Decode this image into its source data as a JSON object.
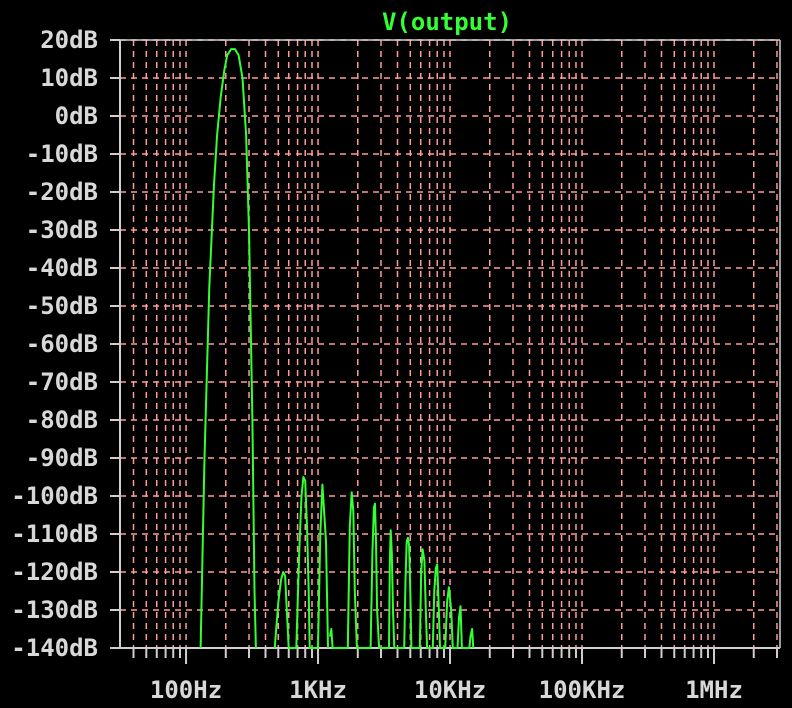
{
  "chart_data": {
    "type": "line",
    "title": "V(output)",
    "xscale": "log",
    "xlim": [
      31.6,
      3162000
    ],
    "ylim": [
      -140,
      20
    ],
    "y_ticks": [
      "20dB",
      "10dB",
      "0dB",
      "-10dB",
      "-20dB",
      "-30dB",
      "-40dB",
      "-50dB",
      "-60dB",
      "-70dB",
      "-80dB",
      "-90dB",
      "-100dB",
      "-110dB",
      "-120dB",
      "-130dB",
      "-140dB"
    ],
    "y_tick_values": [
      20,
      10,
      0,
      -10,
      -20,
      -30,
      -40,
      -50,
      -60,
      -70,
      -80,
      -90,
      -100,
      -110,
      -120,
      -130,
      -140
    ],
    "x_ticks": [
      "100Hz",
      "1KHz",
      "10KHz",
      "100KHz",
      "1MHz"
    ],
    "x_tick_values": [
      100,
      1000,
      10000,
      100000,
      1000000
    ],
    "grid": true,
    "colors": {
      "background": "#000000",
      "grid": "#ff9b9b",
      "axis": "#cfcfcf",
      "trace": "#33ff33"
    },
    "series": [
      {
        "name": "V(output)",
        "x": [
          129,
          138,
          150,
          163,
          172,
          183,
          195,
          205,
          220,
          235,
          250,
          268,
          285,
          300,
          318,
          330,
          338,
          345,
          350,
          470,
          500,
          525,
          545,
          563,
          580,
          600,
          685,
          720,
          750,
          775,
          800,
          825,
          850,
          865,
          1000,
          1040,
          1080,
          1150,
          1190,
          1200,
          1230,
          1260,
          1290,
          1680,
          1740,
          1800,
          1850,
          1900,
          1970,
          2500,
          2580,
          2650,
          2700,
          2750,
          2800,
          2900,
          3450,
          3500,
          3550,
          3620,
          3700,
          3780,
          4500,
          4600,
          4700,
          4800,
          4900,
          5000,
          5100,
          5900,
          6050,
          6200,
          6400,
          6550,
          6700,
          7400,
          7600,
          7800,
          8000,
          8200,
          8400,
          9200,
          9500,
          9800,
          10200,
          10500,
          11400,
          11700,
          12000,
          12300,
          14000,
          14300,
          14700,
          15000
        ],
        "y": [
          -140,
          -90,
          -45,
          -18,
          -5,
          5,
          12,
          16,
          17.6,
          17.6,
          16,
          10,
          -5,
          -30,
          -80,
          -125,
          -140,
          null,
          null,
          -140,
          -128,
          -122,
          -120,
          -121,
          -130,
          -140,
          -140,
          -115,
          -100,
          -95,
          -96,
          -108,
          -125,
          -140,
          -140,
          -110,
          -97,
          -112,
          -140,
          null,
          -137,
          -135,
          -140,
          -140,
          -108,
          -99,
          -104,
          -125,
          -140,
          -140,
          -115,
          -103,
          -102,
          -112,
          -130,
          -140,
          -140,
          -118,
          -109,
          -115,
          -130,
          -140,
          -140,
          -122,
          -112,
          -111,
          -113,
          -125,
          -140,
          -140,
          -120,
          -114,
          -117,
          -130,
          -140,
          -140,
          -125,
          -119,
          -118,
          -128,
          -140,
          -140,
          -128,
          -124,
          -130,
          -140,
          -140,
          -132,
          -129,
          -140,
          -140,
          -137,
          -135,
          -140
        ]
      }
    ]
  }
}
